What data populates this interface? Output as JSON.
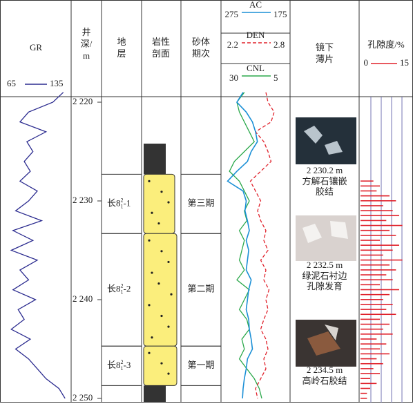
{
  "header": {
    "gr": "GR",
    "depth": [
      "井",
      "深/",
      "m"
    ],
    "strata": [
      "地",
      "层"
    ],
    "lithology": [
      "岩性",
      "剖面"
    ],
    "period": [
      "砂体",
      "期次"
    ],
    "thin_section": [
      "镜下",
      "薄片"
    ],
    "porosity": "孔隙度/%"
  },
  "gr_axis": {
    "min": 65,
    "max": 135,
    "color": "#2b2b8f"
  },
  "ac_axis": {
    "name": "AC",
    "min": 275,
    "max": 175,
    "color": "#1a8fd6"
  },
  "den_axis": {
    "name": "DEN",
    "min": 2.2,
    "max": 2.8,
    "color": "#e0202a"
  },
  "cnl_axis": {
    "name": "CNL",
    "min": 30,
    "max": 5,
    "color": "#2aa84a"
  },
  "porosity_axis": {
    "min": 0,
    "max": 15,
    "color": "#e0202a"
  },
  "depth_ticks": [
    {
      "value": 2220,
      "label": "2 220"
    },
    {
      "value": 2230,
      "label": "2 230"
    },
    {
      "value": 2240,
      "label": "2 240"
    },
    {
      "value": 2250,
      "label": "2 250"
    }
  ],
  "layers": [
    {
      "name": "长8",
      "sub": "1",
      "sup": "2",
      "suffix": "-1",
      "top": 2227.3,
      "bottom": 2233.3,
      "period": "第三期"
    },
    {
      "name": "长8",
      "sub": "1",
      "sup": "2",
      "suffix": "-2",
      "top": 2233.3,
      "bottom": 2244.7,
      "period": "第二期"
    },
    {
      "name": "长8",
      "sub": "1",
      "sup": "2",
      "suffix": "-3",
      "top": 2244.7,
      "bottom": 2248.7,
      "period": "第一期"
    }
  ],
  "thin_sections": [
    {
      "depth": "2 230.2 m",
      "caption": [
        "方解石镶嵌",
        "胶结"
      ]
    },
    {
      "depth": "2 232.5 m",
      "caption": [
        "绿泥石衬边",
        "孔隙发育"
      ]
    },
    {
      "depth": "2 234.5 m",
      "caption": [
        "高岭石胶结"
      ]
    }
  ],
  "log_depths": [
    2219,
    2220,
    2221,
    2222,
    2223,
    2224,
    2225,
    2226,
    2227,
    2228,
    2229,
    2230,
    2231,
    2232,
    2233,
    2234,
    2235,
    2236,
    2237,
    2238,
    2239,
    2240,
    2241,
    2242,
    2243,
    2244,
    2245,
    2246,
    2247,
    2248,
    2249,
    2250
  ],
  "gr": [
    130,
    118,
    90,
    80,
    110,
    88,
    95,
    85,
    92,
    80,
    100,
    90,
    75,
    105,
    72,
    95,
    70,
    100,
    80,
    90,
    72,
    98,
    78,
    85,
    70,
    92,
    75,
    90,
    100,
    110,
    125,
    132
  ],
  "ac": [
    245,
    255,
    240,
    230,
    225,
    222,
    232,
    238,
    255,
    270,
    245,
    240,
    242,
    238,
    235,
    240,
    236,
    238,
    240,
    232,
    236,
    238,
    240,
    236,
    235,
    232,
    230,
    238,
    240,
    243,
    245,
    246
  ],
  "den": [
    2.6,
    2.62,
    2.68,
    2.65,
    2.5,
    2.58,
    2.62,
    2.65,
    2.55,
    2.45,
    2.5,
    2.55,
    2.52,
    2.55,
    2.6,
    2.58,
    2.62,
    2.55,
    2.6,
    2.58,
    2.63,
    2.6,
    2.62,
    2.58,
    2.55,
    2.6,
    2.62,
    2.58,
    2.6,
    2.55,
    2.5,
    2.52
  ],
  "cnl": [
    22,
    25,
    24,
    22,
    20,
    18,
    22,
    26,
    28,
    24,
    22,
    20,
    22,
    21,
    24,
    22,
    23,
    24,
    22,
    25,
    20,
    22,
    24,
    21,
    20,
    23,
    22,
    24,
    21,
    18,
    16,
    15
  ],
  "porosity_depth_start": 2228,
  "porosity_depth_step": 0.5,
  "porosity": [
    4,
    6,
    5,
    9,
    11,
    7,
    10,
    12,
    8,
    13,
    9,
    11,
    6,
    12,
    10,
    7,
    13,
    9,
    11,
    8,
    10,
    6,
    12,
    9,
    7,
    10,
    8,
    11,
    6,
    9,
    7,
    10,
    5,
    8,
    6,
    9,
    5,
    7,
    4,
    6,
    3,
    5,
    3,
    2,
    2
  ]
}
